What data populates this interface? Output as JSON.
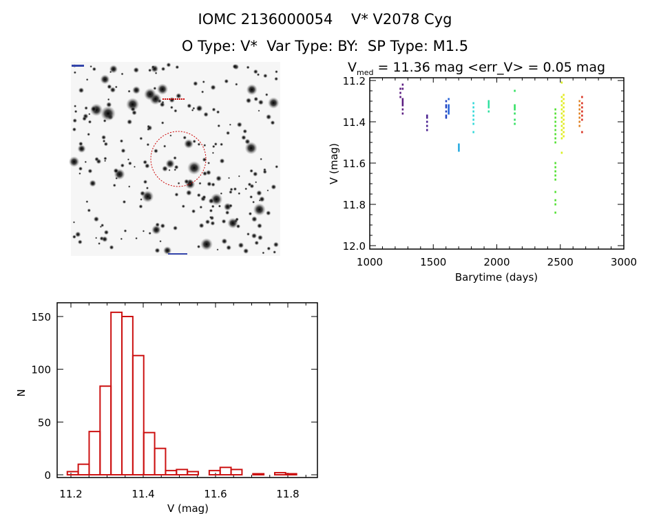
{
  "title": "IOMC 2136000054    V* V2078 Cyg",
  "subtitle": "O Type: V*  Var Type: BY:  SP Type: M1.5",
  "image_panel": {
    "marker_color": "#cc0000"
  },
  "chart_data": [
    {
      "type": "scatter",
      "title_prefix": "V",
      "title_subscript": "med",
      "title_rest": " = 11.36 mag <err_V> = 0.05 mag",
      "xlabel": "Barytime (days)",
      "ylabel": "V (mag)",
      "xlim": [
        1000,
        3000
      ],
      "ylim": [
        12.0,
        11.2
      ],
      "y_inverted": true,
      "xticks": [
        "1000",
        "1500",
        "2000",
        "2500",
        "3000"
      ],
      "yticks": [
        "11.2",
        "11.4",
        "11.6",
        "11.8",
        "12.0"
      ],
      "grid": false,
      "color_by": "time (rainbow)",
      "clusters": [
        {
          "t": 1240,
          "color": "#5a1a80",
          "mags": [
            11.24,
            11.26,
            11.28
          ]
        },
        {
          "t": 1258,
          "color": "#5a1a80",
          "mags": [
            11.22,
            11.24,
            11.29,
            11.3,
            11.31,
            11.32,
            11.34,
            11.36
          ]
        },
        {
          "t": 1450,
          "color": "#4a2090",
          "mags": [
            11.37,
            11.38,
            11.4,
            11.42,
            11.44
          ]
        },
        {
          "t": 1600,
          "color": "#2040c0",
          "mags": [
            11.3,
            11.32,
            11.33,
            11.35,
            11.37,
            11.38
          ]
        },
        {
          "t": 1620,
          "color": "#2060d8",
          "mags": [
            11.29,
            11.32,
            11.33,
            11.34,
            11.35,
            11.36
          ]
        },
        {
          "t": 1700,
          "color": "#20a8e0",
          "mags": [
            11.51,
            11.52,
            11.53,
            11.54
          ]
        },
        {
          "t": 1815,
          "color": "#30d8d8",
          "mags": [
            11.31,
            11.33,
            11.35,
            11.37,
            11.39,
            11.41,
            11.45
          ]
        },
        {
          "t": 1935,
          "color": "#30e0a0",
          "mags": [
            11.3,
            11.31,
            11.32,
            11.33,
            11.35
          ]
        },
        {
          "t": 2140,
          "color": "#30e060",
          "mags": [
            11.25,
            11.32,
            11.33,
            11.34,
            11.36,
            11.39,
            11.41
          ]
        },
        {
          "t": 2460,
          "color": "#50e030",
          "mags": [
            11.34,
            11.36,
            11.38,
            11.4,
            11.42,
            11.44,
            11.46,
            11.48,
            11.5,
            11.6,
            11.62,
            11.64,
            11.66,
            11.68,
            11.74,
            11.78,
            11.8,
            11.84
          ]
        },
        {
          "t": 2510,
          "color": "#d8f020",
          "mags": [
            11.21,
            11.28,
            11.3,
            11.32,
            11.34,
            11.36,
            11.38,
            11.4,
            11.42,
            11.44,
            11.46,
            11.48,
            11.55
          ]
        },
        {
          "t": 2525,
          "color": "#e8e820",
          "mags": [
            11.27,
            11.29,
            11.31,
            11.33,
            11.35,
            11.37,
            11.39,
            11.41,
            11.43,
            11.45,
            11.47
          ]
        },
        {
          "t": 2650,
          "color": "#e08020",
          "mags": [
            11.3,
            11.32,
            11.34,
            11.36,
            11.38,
            11.4,
            11.42
          ]
        },
        {
          "t": 2670,
          "color": "#d83020",
          "mags": [
            11.28,
            11.31,
            11.33,
            11.35,
            11.37,
            11.39,
            11.45
          ]
        }
      ]
    },
    {
      "type": "bar",
      "subtype": "histogram",
      "xlabel": "V (mag)",
      "ylabel": "N",
      "xlim": [
        11.15,
        11.9
      ],
      "ylim": [
        0,
        163
      ],
      "xticks": [
        "11.2",
        "11.4",
        "11.6",
        "11.8"
      ],
      "yticks": [
        "0",
        "50",
        "100",
        "150"
      ],
      "bin_start": 11.19,
      "bin_width": 0.0302,
      "counts": [
        3,
        10,
        41,
        84,
        154,
        150,
        113,
        40,
        25,
        4,
        5,
        3,
        0,
        4,
        7,
        5,
        0,
        1,
        0,
        2,
        1
      ],
      "bar_color": "#cc1111",
      "grid": false
    }
  ]
}
